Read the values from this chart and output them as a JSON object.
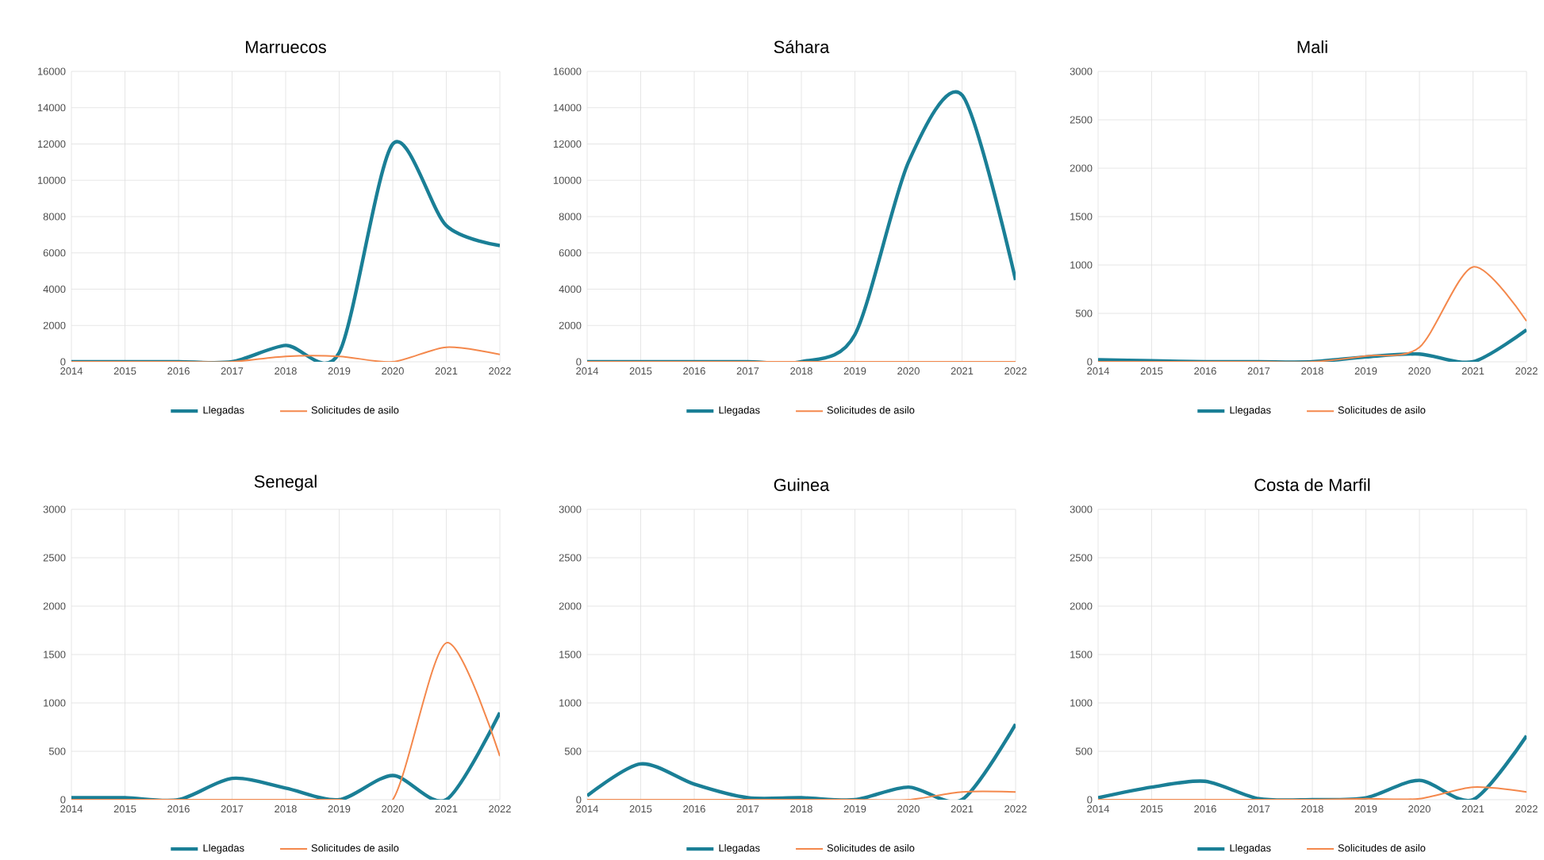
{
  "chart_data": [
    {
      "type": "line",
      "title": "Marruecos",
      "x": [
        2014,
        2015,
        2016,
        2017,
        2018,
        2019,
        2020,
        2021,
        2022
      ],
      "xlim": [
        2014,
        2022
      ],
      "xticks": [
        2014,
        2015,
        2016,
        2017,
        2018,
        2019,
        2020,
        2021,
        2022
      ],
      "ylim": [
        0,
        16000
      ],
      "yticks": [
        0,
        2000,
        4000,
        6000,
        8000,
        10000,
        12000,
        14000,
        16000
      ],
      "grid": true,
      "legend": "bottom",
      "series": [
        {
          "name": "Llegadas",
          "color": "#1a7f96",
          "values": [
            0,
            0,
            0,
            0,
            900,
            500,
            12000,
            7500,
            6400
          ]
        },
        {
          "name": "Solicitudes de asilo",
          "color": "#f4884c",
          "values": [
            0,
            0,
            0,
            0,
            300,
            300,
            0,
            800,
            400
          ]
        }
      ]
    },
    {
      "type": "line",
      "title": "Sáhara",
      "x": [
        2014,
        2015,
        2016,
        2017,
        2018,
        2019,
        2020,
        2021,
        2022
      ],
      "xlim": [
        2014,
        2022
      ],
      "xticks": [
        2014,
        2015,
        2016,
        2017,
        2018,
        2019,
        2020,
        2021,
        2022
      ],
      "ylim": [
        0,
        16000
      ],
      "yticks": [
        0,
        2000,
        4000,
        6000,
        8000,
        10000,
        12000,
        14000,
        16000
      ],
      "grid": true,
      "legend": "bottom",
      "series": [
        {
          "name": "Llegadas",
          "color": "#1a7f96",
          "values": [
            0,
            0,
            0,
            0,
            0,
            1500,
            11000,
            14700,
            4500
          ]
        },
        {
          "name": "Solicitudes de asilo",
          "color": "#f4884c",
          "values": [
            0,
            0,
            0,
            0,
            0,
            0,
            0,
            0,
            0
          ]
        }
      ]
    },
    {
      "type": "line",
      "title": "Mali",
      "x": [
        2014,
        2015,
        2016,
        2017,
        2018,
        2019,
        2020,
        2021,
        2022
      ],
      "xlim": [
        2014,
        2022
      ],
      "xticks": [
        2014,
        2015,
        2016,
        2017,
        2018,
        2019,
        2020,
        2021,
        2022
      ],
      "ylim": [
        0,
        3000
      ],
      "yticks": [
        0,
        500,
        1000,
        1500,
        2000,
        2500,
        3000
      ],
      "grid": true,
      "legend": "bottom",
      "series": [
        {
          "name": "Llegadas",
          "color": "#1a7f96",
          "values": [
            20,
            10,
            0,
            0,
            0,
            50,
            80,
            0,
            330
          ]
        },
        {
          "name": "Solicitudes de asilo",
          "color": "#f4884c",
          "values": [
            0,
            0,
            0,
            0,
            0,
            60,
            150,
            980,
            420
          ]
        }
      ]
    },
    {
      "type": "line",
      "title": "Senegal",
      "x": [
        2014,
        2015,
        2016,
        2017,
        2018,
        2019,
        2020,
        2021,
        2022
      ],
      "xlim": [
        2014,
        2022
      ],
      "xticks": [
        2014,
        2015,
        2016,
        2017,
        2018,
        2019,
        2020,
        2021,
        2022
      ],
      "ylim": [
        0,
        3000
      ],
      "yticks": [
        0,
        500,
        1000,
        1500,
        2000,
        2500,
        3000
      ],
      "grid": true,
      "legend": "bottom",
      "series": [
        {
          "name": "Llegadas",
          "color": "#1a7f96",
          "values": [
            20,
            20,
            0,
            220,
            120,
            0,
            250,
            0,
            900
          ]
        },
        {
          "name": "Solicitudes de asilo",
          "color": "#f4884c",
          "values": [
            0,
            0,
            0,
            0,
            0,
            0,
            0,
            1620,
            450
          ]
        }
      ]
    },
    {
      "type": "line",
      "title": "Guinea",
      "x": [
        2014,
        2015,
        2016,
        2017,
        2018,
        2019,
        2020,
        2021,
        2022
      ],
      "xlim": [
        2014,
        2022
      ],
      "xticks": [
        2014,
        2015,
        2016,
        2017,
        2018,
        2019,
        2020,
        2021,
        2022
      ],
      "ylim": [
        0,
        3000
      ],
      "yticks": [
        0,
        500,
        1000,
        1500,
        2000,
        2500,
        3000
      ],
      "grid": true,
      "legend": "bottom",
      "series": [
        {
          "name": "Llegadas",
          "color": "#1a7f96",
          "values": [
            40,
            370,
            160,
            20,
            20,
            0,
            130,
            0,
            780
          ]
        },
        {
          "name": "Solicitudes de asilo",
          "color": "#f4884c",
          "values": [
            0,
            0,
            0,
            0,
            0,
            0,
            0,
            80,
            80
          ]
        }
      ]
    },
    {
      "type": "line",
      "title": "Costa de Marfil",
      "x": [
        2014,
        2015,
        2016,
        2017,
        2018,
        2019,
        2020,
        2021,
        2022
      ],
      "xlim": [
        2014,
        2022
      ],
      "xticks": [
        2014,
        2015,
        2016,
        2017,
        2018,
        2019,
        2020,
        2021,
        2022
      ],
      "ylim": [
        0,
        3000
      ],
      "yticks": [
        0,
        500,
        1000,
        1500,
        2000,
        2500,
        3000
      ],
      "grid": true,
      "legend": "bottom",
      "series": [
        {
          "name": "Llegadas",
          "color": "#1a7f96",
          "values": [
            20,
            130,
            190,
            10,
            0,
            20,
            200,
            0,
            660
          ]
        },
        {
          "name": "Solicitudes de asilo",
          "color": "#f4884c",
          "values": [
            0,
            0,
            0,
            0,
            0,
            10,
            10,
            130,
            80
          ]
        }
      ]
    }
  ]
}
